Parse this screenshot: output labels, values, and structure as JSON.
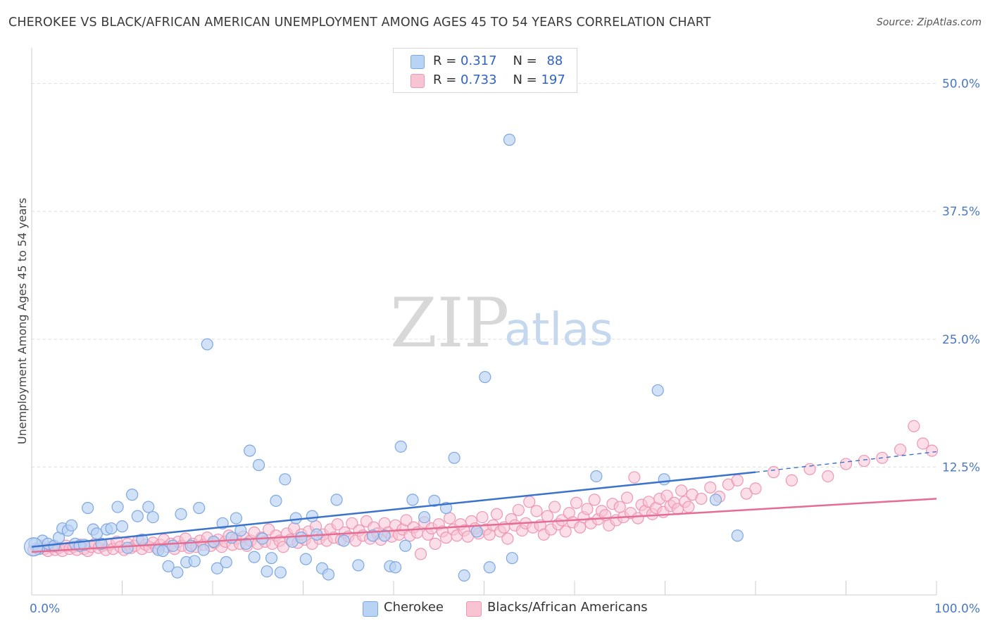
{
  "title": "CHEROKEE VS BLACK/AFRICAN AMERICAN UNEMPLOYMENT AMONG AGES 45 TO 54 YEARS CORRELATION CHART",
  "source": "Source: ZipAtlas.com",
  "watermark": {
    "zip": "ZIP",
    "atlas": "atlas"
  },
  "legend": {
    "r_label": "R =",
    "n_label": "N =",
    "rows": [
      {
        "r": "0.317",
        "n": "88"
      },
      {
        "r": "0.733",
        "n": "197"
      }
    ]
  },
  "colors": {
    "cherokee_fill": "#b9d3f5",
    "cherokee_stroke": "#7ea7e0",
    "cherokee_line": "#3a72cc",
    "black_fill": "#f8c3d3",
    "black_stroke": "#ee97b3",
    "black_line": "#e56d95",
    "grid": "#dddddd",
    "tick_text": "#4a78c2"
  },
  "chart_data": {
    "type": "scatter",
    "title": "CHEROKEE VS BLACK/AFRICAN AMERICAN UNEMPLOYMENT AMONG AGES 45 TO 54 YEARS CORRELATION CHART",
    "xlabel": "",
    "ylabel": "Unemployment Among Ages 45 to 54 years",
    "xlim": [
      0,
      100
    ],
    "ylim": [
      0,
      53
    ],
    "x_tick_labels": [
      "0.0%",
      "100.0%"
    ],
    "y_ticks": [
      12.5,
      25.0,
      37.5,
      50.0
    ],
    "y_tick_labels": [
      "12.5%",
      "25.0%",
      "37.5%",
      "50.0%"
    ],
    "grid": "horizontal-dashed",
    "legend_position": "bottom-center",
    "series": [
      {
        "name": "Cherokee",
        "r": 0.317,
        "n": 88,
        "trend": {
          "x": [
            0,
            80
          ],
          "y": [
            4.7,
            12.0
          ],
          "dashed_to": [
            100,
            14.0
          ]
        },
        "points": [
          [
            0.3,
            5.0
          ],
          [
            0.8,
            4.5
          ],
          [
            1.2,
            5.3
          ],
          [
            1.8,
            5.0
          ],
          [
            2.5,
            4.8
          ],
          [
            3.0,
            5.6
          ],
          [
            3.4,
            6.5
          ],
          [
            4.0,
            6.3
          ],
          [
            4.4,
            6.8
          ],
          [
            4.8,
            5.0
          ],
          [
            5.3,
            4.8
          ],
          [
            5.8,
            4.9
          ],
          [
            6.2,
            8.5
          ],
          [
            6.8,
            6.4
          ],
          [
            7.2,
            6.0
          ],
          [
            7.7,
            5.0
          ],
          [
            8.3,
            6.4
          ],
          [
            8.8,
            6.5
          ],
          [
            9.5,
            8.6
          ],
          [
            10.0,
            6.7
          ],
          [
            10.6,
            4.6
          ],
          [
            11.1,
            9.8
          ],
          [
            11.7,
            7.7
          ],
          [
            12.2,
            5.4
          ],
          [
            12.9,
            8.6
          ],
          [
            13.4,
            7.6
          ],
          [
            14.0,
            4.4
          ],
          [
            14.5,
            4.3
          ],
          [
            15.1,
            2.8
          ],
          [
            15.6,
            4.8
          ],
          [
            16.1,
            2.2
          ],
          [
            16.5,
            7.9
          ],
          [
            17.1,
            3.2
          ],
          [
            17.6,
            4.8
          ],
          [
            18.0,
            3.3
          ],
          [
            18.5,
            8.5
          ],
          [
            19.0,
            4.4
          ],
          [
            19.4,
            24.5
          ],
          [
            20.1,
            5.2
          ],
          [
            20.5,
            2.6
          ],
          [
            21.1,
            7.0
          ],
          [
            21.5,
            3.2
          ],
          [
            22.1,
            5.6
          ],
          [
            22.6,
            7.5
          ],
          [
            23.1,
            6.3
          ],
          [
            23.7,
            5.0
          ],
          [
            24.1,
            14.1
          ],
          [
            24.6,
            3.7
          ],
          [
            25.1,
            12.7
          ],
          [
            25.5,
            5.5
          ],
          [
            26.0,
            2.3
          ],
          [
            26.5,
            3.6
          ],
          [
            27.0,
            9.2
          ],
          [
            27.5,
            2.2
          ],
          [
            28.0,
            11.3
          ],
          [
            28.8,
            5.2
          ],
          [
            29.2,
            7.5
          ],
          [
            29.8,
            5.6
          ],
          [
            30.3,
            3.5
          ],
          [
            31.0,
            7.7
          ],
          [
            31.5,
            5.9
          ],
          [
            32.1,
            2.6
          ],
          [
            32.8,
            2.0
          ],
          [
            33.7,
            9.3
          ],
          [
            34.5,
            5.3
          ],
          [
            36.1,
            2.9
          ],
          [
            37.7,
            5.8
          ],
          [
            39.0,
            5.8
          ],
          [
            39.6,
            2.8
          ],
          [
            40.2,
            2.7
          ],
          [
            40.8,
            14.5
          ],
          [
            41.3,
            4.8
          ],
          [
            42.1,
            9.3
          ],
          [
            43.4,
            7.6
          ],
          [
            44.5,
            9.2
          ],
          [
            45.8,
            8.5
          ],
          [
            46.7,
            13.4
          ],
          [
            47.8,
            1.9
          ],
          [
            49.2,
            6.2
          ],
          [
            50.1,
            21.3
          ],
          [
            50.6,
            2.7
          ],
          [
            52.8,
            44.5
          ],
          [
            53.1,
            3.6
          ],
          [
            62.4,
            11.6
          ],
          [
            69.2,
            20.0
          ],
          [
            69.9,
            11.3
          ],
          [
            75.6,
            9.3
          ],
          [
            78.0,
            5.8
          ]
        ]
      },
      {
        "name": "Blacks/African Americans",
        "r": 0.733,
        "n": 197,
        "trend": {
          "x": [
            0,
            100
          ],
          "y": [
            4.2,
            9.4
          ]
        },
        "points": [
          [
            0.2,
            4.4
          ],
          [
            0.6,
            4.6
          ],
          [
            1.0,
            4.8
          ],
          [
            1.4,
            4.5
          ],
          [
            1.8,
            4.3
          ],
          [
            2.2,
            4.7
          ],
          [
            2.6,
            4.4
          ],
          [
            3.0,
            4.6
          ],
          [
            3.4,
            4.3
          ],
          [
            3.8,
            4.8
          ],
          [
            4.2,
            4.5
          ],
          [
            4.6,
            4.7
          ],
          [
            5.0,
            4.4
          ],
          [
            5.4,
            4.9
          ],
          [
            5.8,
            4.5
          ],
          [
            6.2,
            4.3
          ],
          [
            6.6,
            4.7
          ],
          [
            7.0,
            5.0
          ],
          [
            7.4,
            4.6
          ],
          [
            7.8,
            4.8
          ],
          [
            8.2,
            4.4
          ],
          [
            8.6,
            4.9
          ],
          [
            9.0,
            4.5
          ],
          [
            9.4,
            5.2
          ],
          [
            9.8,
            4.7
          ],
          [
            10.2,
            4.4
          ],
          [
            10.6,
            5.0
          ],
          [
            11.0,
            4.6
          ],
          [
            11.4,
            4.8
          ],
          [
            11.8,
            5.3
          ],
          [
            12.2,
            4.5
          ],
          [
            12.6,
            4.9
          ],
          [
            13.0,
            4.7
          ],
          [
            13.4,
            5.1
          ],
          [
            13.8,
            4.6
          ],
          [
            14.2,
            4.9
          ],
          [
            14.6,
            5.4
          ],
          [
            15.0,
            4.7
          ],
          [
            15.4,
            5.0
          ],
          [
            15.8,
            4.5
          ],
          [
            16.2,
            5.2
          ],
          [
            16.6,
            4.8
          ],
          [
            17.0,
            5.5
          ],
          [
            17.4,
            4.6
          ],
          [
            17.8,
            5.0
          ],
          [
            18.2,
            4.7
          ],
          [
            18.6,
            5.3
          ],
          [
            19.0,
            4.9
          ],
          [
            19.4,
            5.6
          ],
          [
            19.8,
            4.8
          ],
          [
            20.2,
            5.1
          ],
          [
            20.6,
            5.4
          ],
          [
            21.0,
            4.7
          ],
          [
            21.4,
            5.2
          ],
          [
            21.8,
            5.8
          ],
          [
            22.2,
            4.9
          ],
          [
            22.6,
            5.5
          ],
          [
            23.0,
            5.0
          ],
          [
            23.4,
            5.7
          ],
          [
            23.8,
            4.8
          ],
          [
            24.2,
            5.3
          ],
          [
            24.6,
            6.1
          ],
          [
            25.0,
            5.0
          ],
          [
            25.4,
            5.6
          ],
          [
            25.8,
            5.2
          ],
          [
            26.2,
            6.4
          ],
          [
            26.6,
            5.0
          ],
          [
            27.0,
            5.8
          ],
          [
            27.4,
            5.3
          ],
          [
            27.8,
            4.7
          ],
          [
            28.2,
            6.0
          ],
          [
            28.6,
            5.4
          ],
          [
            29.0,
            6.5
          ],
          [
            29.4,
            5.1
          ],
          [
            29.8,
            5.9
          ],
          [
            30.2,
            5.4
          ],
          [
            30.6,
            6.2
          ],
          [
            31.0,
            5.0
          ],
          [
            31.4,
            6.7
          ],
          [
            31.8,
            5.5
          ],
          [
            32.2,
            5.9
          ],
          [
            32.6,
            5.3
          ],
          [
            33.0,
            6.4
          ],
          [
            33.4,
            5.6
          ],
          [
            33.8,
            6.9
          ],
          [
            34.2,
            5.4
          ],
          [
            34.6,
            6.1
          ],
          [
            35.0,
            5.7
          ],
          [
            35.4,
            7.0
          ],
          [
            35.8,
            5.3
          ],
          [
            36.2,
            6.3
          ],
          [
            36.6,
            5.8
          ],
          [
            37.0,
            7.2
          ],
          [
            37.4,
            5.5
          ],
          [
            37.8,
            6.6
          ],
          [
            38.2,
            6.0
          ],
          [
            38.6,
            5.4
          ],
          [
            39.0,
            7.0
          ],
          [
            39.4,
            6.1
          ],
          [
            39.8,
            5.7
          ],
          [
            40.2,
            6.8
          ],
          [
            40.6,
            5.9
          ],
          [
            41.0,
            6.4
          ],
          [
            41.4,
            7.3
          ],
          [
            41.8,
            5.8
          ],
          [
            42.2,
            6.6
          ],
          [
            42.6,
            6.1
          ],
          [
            43.0,
            4.0
          ],
          [
            43.4,
            7.1
          ],
          [
            43.8,
            5.9
          ],
          [
            44.2,
            6.5
          ],
          [
            44.6,
            5.0
          ],
          [
            45.0,
            6.9
          ],
          [
            45.4,
            6.2
          ],
          [
            45.8,
            5.6
          ],
          [
            46.2,
            7.5
          ],
          [
            46.6,
            6.4
          ],
          [
            47.0,
            5.8
          ],
          [
            47.4,
            6.9
          ],
          [
            47.8,
            6.3
          ],
          [
            48.2,
            5.7
          ],
          [
            48.6,
            7.2
          ],
          [
            49.0,
            6.5
          ],
          [
            49.4,
            6.0
          ],
          [
            49.8,
            7.6
          ],
          [
            50.2,
            6.4
          ],
          [
            50.6,
            5.9
          ],
          [
            51.0,
            6.8
          ],
          [
            51.4,
            7.9
          ],
          [
            51.8,
            6.2
          ],
          [
            52.2,
            6.6
          ],
          [
            52.6,
            5.5
          ],
          [
            53.0,
            7.4
          ],
          [
            53.4,
            6.8
          ],
          [
            53.8,
            8.3
          ],
          [
            54.2,
            6.3
          ],
          [
            54.6,
            7.0
          ],
          [
            55.0,
            9.1
          ],
          [
            55.4,
            6.6
          ],
          [
            55.8,
            8.2
          ],
          [
            56.2,
            6.8
          ],
          [
            56.6,
            5.9
          ],
          [
            57.0,
            7.7
          ],
          [
            57.4,
            6.4
          ],
          [
            57.8,
            8.6
          ],
          [
            58.2,
            6.9
          ],
          [
            58.6,
            7.3
          ],
          [
            59.0,
            6.2
          ],
          [
            59.4,
            8.0
          ],
          [
            59.8,
            7.1
          ],
          [
            60.2,
            9.0
          ],
          [
            60.6,
            6.6
          ],
          [
            61.0,
            7.6
          ],
          [
            61.4,
            8.4
          ],
          [
            61.8,
            7.0
          ],
          [
            62.2,
            9.3
          ],
          [
            62.6,
            7.4
          ],
          [
            63.0,
            8.2
          ],
          [
            63.4,
            7.8
          ],
          [
            63.8,
            6.8
          ],
          [
            64.2,
            8.9
          ],
          [
            64.6,
            7.3
          ],
          [
            65.0,
            8.6
          ],
          [
            65.4,
            7.6
          ],
          [
            65.8,
            9.5
          ],
          [
            66.2,
            8.0
          ],
          [
            66.6,
            11.5
          ],
          [
            67.0,
            7.5
          ],
          [
            67.4,
            8.8
          ],
          [
            67.8,
            8.2
          ],
          [
            68.2,
            9.1
          ],
          [
            68.6,
            7.9
          ],
          [
            69.0,
            8.5
          ],
          [
            69.4,
            9.4
          ],
          [
            69.8,
            8.1
          ],
          [
            70.2,
            9.7
          ],
          [
            70.6,
            8.7
          ],
          [
            71.0,
            9.0
          ],
          [
            71.4,
            8.4
          ],
          [
            71.8,
            10.2
          ],
          [
            72.2,
            9.1
          ],
          [
            72.6,
            8.6
          ],
          [
            73.0,
            9.8
          ],
          [
            74.0,
            9.4
          ],
          [
            75.0,
            10.5
          ],
          [
            76.0,
            9.6
          ],
          [
            77.0,
            10.8
          ],
          [
            78.0,
            11.2
          ],
          [
            79.0,
            9.9
          ],
          [
            80.0,
            10.4
          ],
          [
            82.0,
            12.0
          ],
          [
            84.0,
            11.2
          ],
          [
            86.0,
            12.3
          ],
          [
            88.0,
            11.6
          ],
          [
            90.0,
            12.8
          ],
          [
            92.0,
            13.1
          ],
          [
            94.0,
            13.4
          ],
          [
            96.0,
            14.2
          ],
          [
            97.5,
            16.5
          ],
          [
            98.5,
            14.8
          ],
          [
            99.5,
            14.1
          ]
        ]
      }
    ]
  },
  "bottom_legend": [
    "Cherokee",
    "Blacks/African Americans"
  ]
}
